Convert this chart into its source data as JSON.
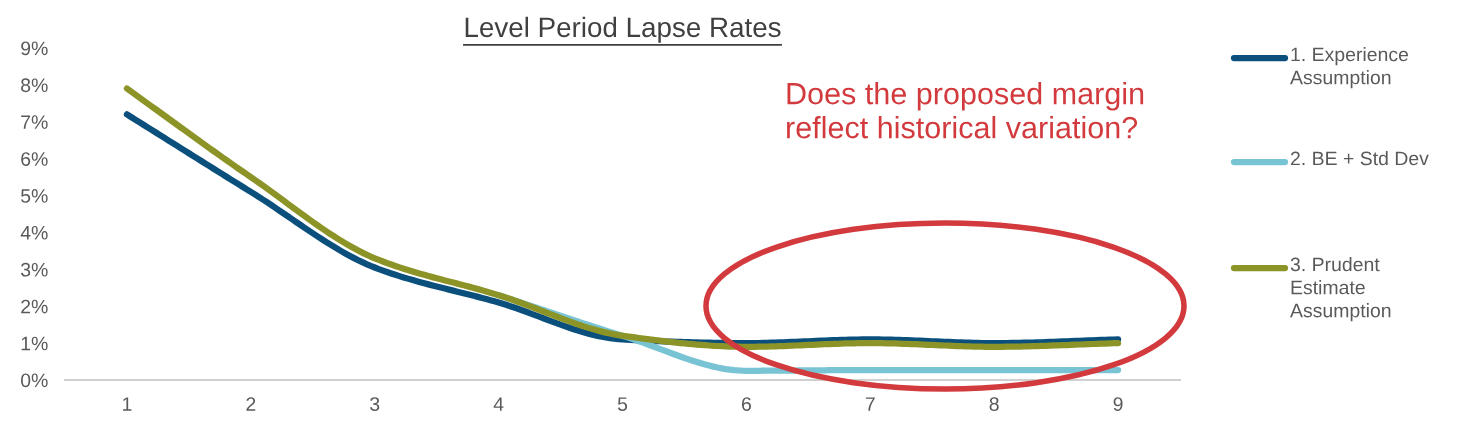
{
  "chart_data": {
    "type": "line",
    "title": "Level Period Lapse Rates",
    "categories": [
      "1",
      "2",
      "3",
      "4",
      "5",
      "6",
      "7",
      "8",
      "9"
    ],
    "series": [
      {
        "name": "1. Experience Assumption",
        "color": "#0b4f7c",
        "values": [
          7.2,
          5.1,
          3.05,
          2.1,
          1.1,
          1.0,
          1.1,
          1.0,
          1.1
        ]
      },
      {
        "name": "2. BE + Std Dev",
        "color": "#79c4d4",
        "values": [
          null,
          null,
          null,
          2.3,
          1.2,
          0.25,
          0.27,
          0.27,
          0.27
        ]
      },
      {
        "name": "3. Prudent Estimate Assumption",
        "color": "#8c9428",
        "values": [
          7.9,
          5.5,
          3.3,
          2.3,
          1.2,
          0.9,
          1.0,
          0.9,
          1.0
        ]
      }
    ],
    "ylim": [
      0,
      9
    ],
    "yticks": [
      {
        "value": 0,
        "label": "0%"
      },
      {
        "value": 1,
        "label": "1%"
      },
      {
        "value": 2,
        "label": "2%"
      },
      {
        "value": 3,
        "label": "3%"
      },
      {
        "value": 4,
        "label": "4%"
      },
      {
        "value": 5,
        "label": "5%"
      },
      {
        "value": 6,
        "label": "6%"
      },
      {
        "value": 7,
        "label": "7%"
      },
      {
        "value": 8,
        "label": "8%"
      },
      {
        "value": 9,
        "label": "9%"
      }
    ],
    "annotations": [
      "Does the proposed margin reflect historical variation?"
    ],
    "grid": false,
    "legend": "right",
    "marker": "none",
    "line_style": "solid"
  }
}
